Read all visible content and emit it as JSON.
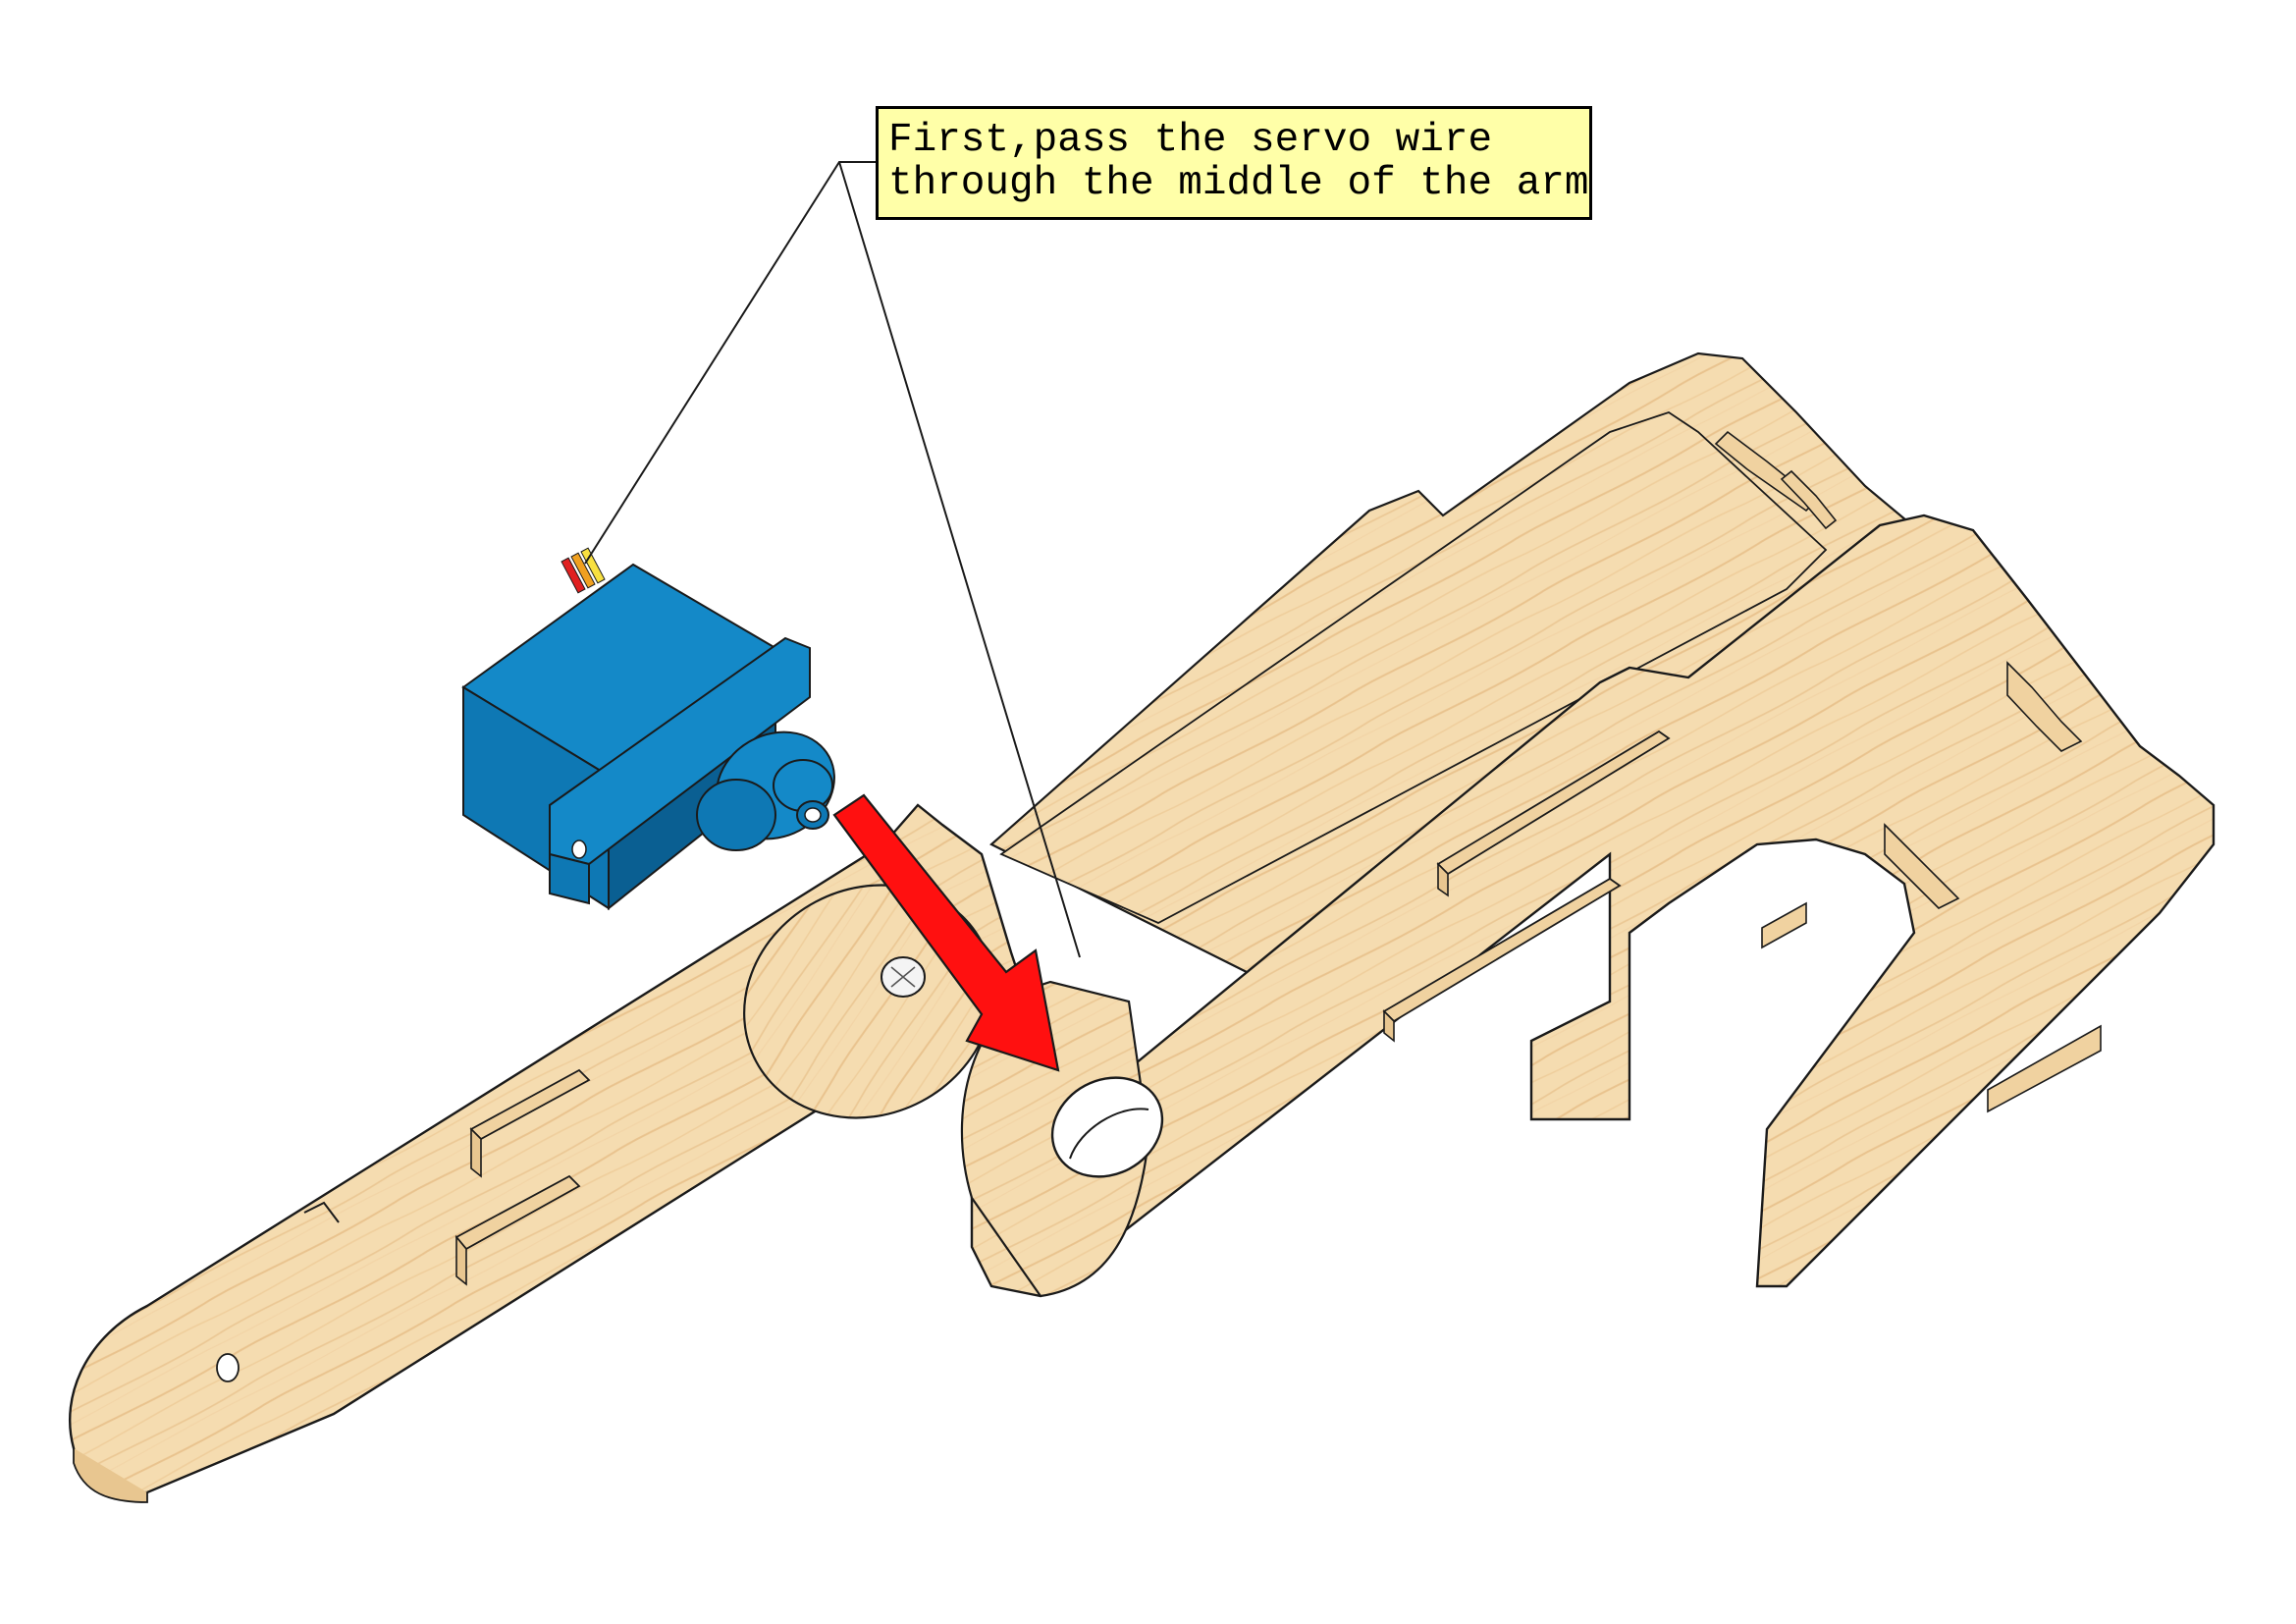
{
  "callout": {
    "line1": "First,pass the servo wire",
    "line2": "through the middle of the arm"
  },
  "colors": {
    "wood_fill": "#f5dcb0",
    "wood_grain": "#e4b880",
    "outline": "#1a1a1a",
    "servo_blue": "#0e78b4",
    "servo_blue_dark": "#0a5f92",
    "servo_blue_light": "#1489c8",
    "arrow_red": "#ff1010",
    "callout_bg": "#ffffa8",
    "wire_red": "#e02020",
    "wire_orange": "#f0a020",
    "wire_yellow": "#f8e040"
  }
}
